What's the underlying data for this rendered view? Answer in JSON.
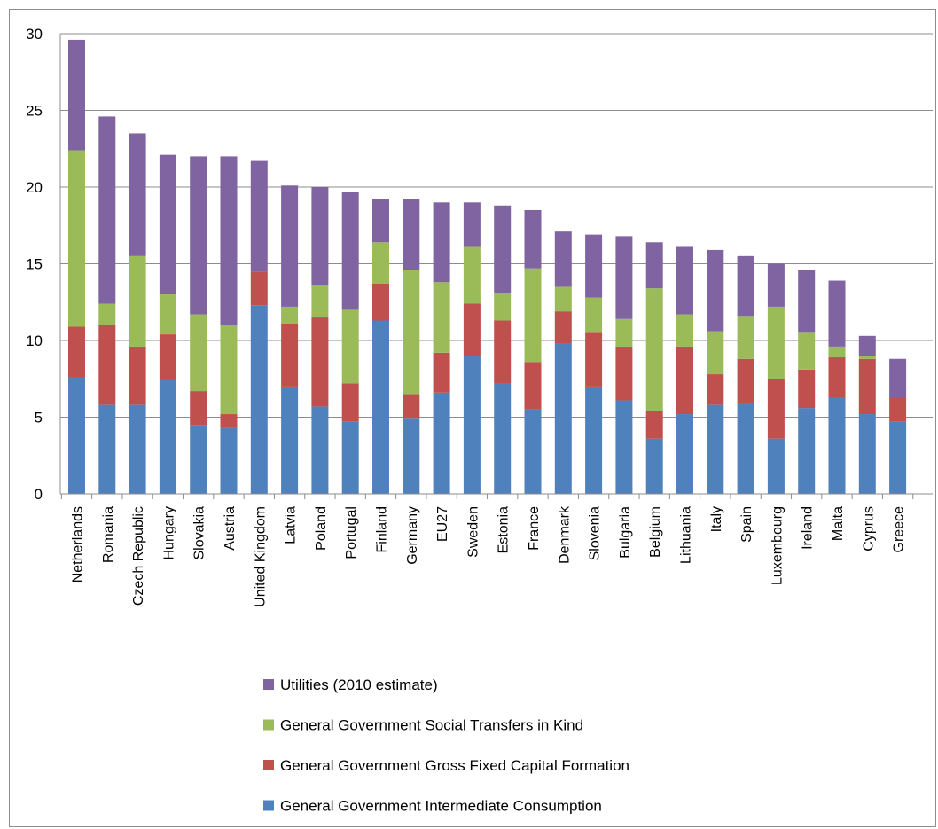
{
  "chart_data": {
    "type": "bar",
    "stacked": true,
    "title": "",
    "xlabel": "",
    "ylabel": "",
    "ylim": [
      0,
      30
    ],
    "yticks": [
      0,
      5,
      10,
      15,
      20,
      25,
      30
    ],
    "grid": true,
    "legend_position": "bottom",
    "categories": [
      "Netherlands",
      "Romania",
      "Czech Republic",
      "Hungary",
      "Slovakia",
      "Austria",
      "United Kingdom",
      "Latvia",
      "Poland",
      "Portugal",
      "Finland",
      "Germany",
      "EU27",
      "Sweden",
      "Estonia",
      "France",
      "Denmark",
      "Slovenia",
      "Bulgaria",
      "Belgium",
      "Lithuania",
      "Italy",
      "Spain",
      "Luxembourg",
      "Ireland",
      "Malta",
      "Cyprus",
      "Greece"
    ],
    "series": [
      {
        "name": "General Government Intermediate Consumption",
        "color": "#4f81bd",
        "values": [
          7.6,
          5.8,
          5.8,
          7.4,
          4.5,
          4.3,
          12.3,
          7.0,
          5.7,
          4.7,
          11.3,
          4.9,
          6.6,
          9.0,
          7.2,
          5.5,
          9.8,
          7.0,
          6.1,
          3.6,
          5.2,
          5.8,
          5.9,
          3.6,
          5.6,
          6.3,
          5.2,
          4.7
        ]
      },
      {
        "name": "General Government Gross Fixed Capital Formation",
        "color": "#c0504d",
        "values": [
          3.3,
          5.2,
          3.8,
          3.0,
          2.2,
          0.9,
          2.2,
          4.1,
          5.8,
          2.5,
          2.4,
          1.6,
          2.6,
          3.4,
          4.1,
          3.1,
          2.1,
          3.5,
          3.5,
          1.8,
          4.4,
          2.0,
          2.9,
          3.9,
          2.5,
          2.6,
          3.6,
          1.6
        ]
      },
      {
        "name": "General Government Social Transfers in Kind",
        "color": "#9bbb59",
        "values": [
          11.5,
          1.4,
          5.9,
          2.6,
          5.0,
          5.8,
          0.0,
          1.1,
          2.1,
          4.8,
          2.7,
          8.1,
          4.6,
          3.7,
          1.8,
          6.1,
          1.6,
          2.3,
          1.8,
          8.0,
          2.1,
          2.8,
          2.8,
          4.7,
          2.4,
          0.7,
          0.2,
          0.0
        ]
      },
      {
        "name": "Utilities (2010 estimate)",
        "color": "#8064a2",
        "values": [
          7.2,
          12.2,
          8.0,
          9.1,
          10.3,
          11.0,
          7.2,
          7.9,
          6.4,
          7.7,
          2.8,
          4.6,
          5.2,
          2.9,
          5.7,
          3.8,
          3.6,
          4.1,
          5.4,
          3.0,
          4.4,
          5.3,
          3.9,
          2.8,
          4.1,
          4.3,
          1.3,
          2.5
        ]
      }
    ],
    "legend_order": [
      "Utilities (2010 estimate)",
      "General Government Social Transfers in Kind",
      "General Government Gross Fixed Capital Formation",
      "General Government Intermediate Consumption"
    ]
  }
}
